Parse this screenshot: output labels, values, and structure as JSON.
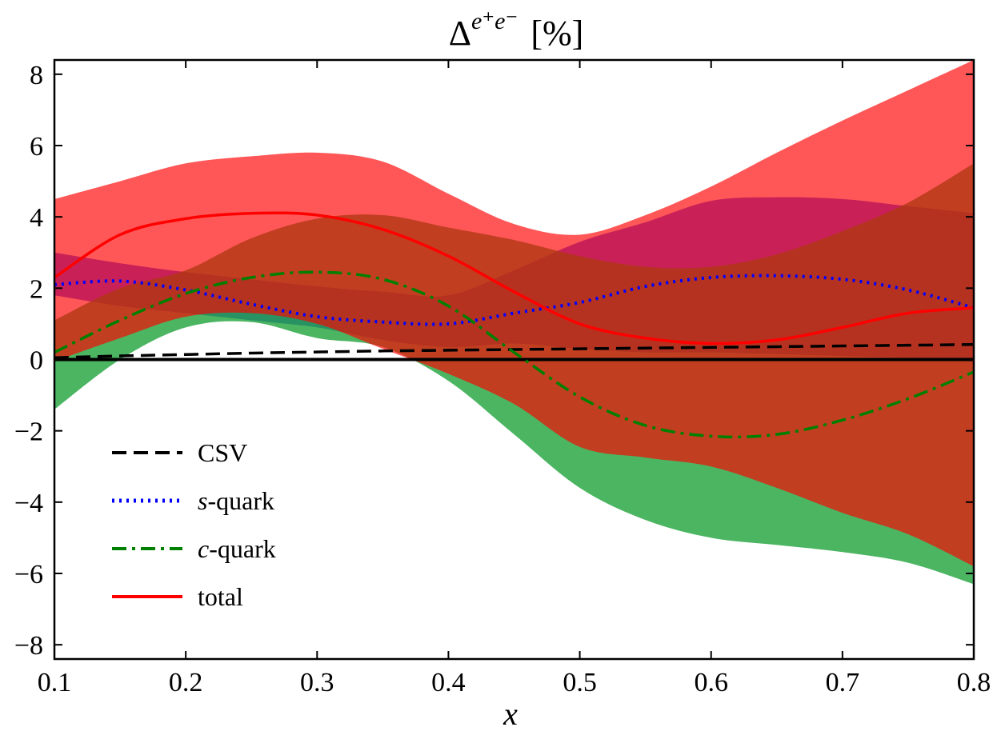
{
  "chart_data": {
    "type": "line",
    "title": "Δ^{e+e−} [%]",
    "title_parts": {
      "base": "Δ",
      "superscript": "e⁺e⁻",
      "unit": "[%]"
    },
    "xlabel": "x",
    "ylabel": "",
    "xlim": [
      0.1,
      0.8
    ],
    "ylim": [
      -8.4,
      8.4
    ],
    "x_ticks": [
      0.1,
      0.2,
      0.3,
      0.4,
      0.5,
      0.6,
      0.7,
      0.8
    ],
    "x_tick_labels": [
      "0.1",
      "0.2",
      "0.3",
      "0.4",
      "0.5",
      "0.6",
      "0.7",
      "0.8"
    ],
    "y_ticks": [
      -8,
      -6,
      -4,
      -2,
      0,
      2,
      4,
      6,
      8
    ],
    "y_tick_labels": [
      "−8",
      "−6",
      "−4",
      "−2",
      "0",
      "2",
      "4",
      "6",
      "8"
    ],
    "grid": false,
    "legend_position": "lower-left",
    "x": [
      0.1,
      0.15,
      0.2,
      0.25,
      0.3,
      0.35,
      0.4,
      0.45,
      0.5,
      0.55,
      0.6,
      0.65,
      0.7,
      0.75,
      0.8
    ],
    "series": [
      {
        "name": "CSV",
        "label_parts": {
          "italic": "",
          "rest": "CSV"
        },
        "color": "#000000",
        "dash": "dashed",
        "values": [
          0.05,
          0.1,
          0.14,
          0.18,
          0.21,
          0.24,
          0.26,
          0.28,
          0.3,
          0.32,
          0.34,
          0.36,
          0.38,
          0.4,
          0.42
        ],
        "band": null
      },
      {
        "name": "s-quark",
        "label_parts": {
          "italic": "s",
          "rest": "-quark"
        },
        "color": "#0000ff",
        "dash": "dotted",
        "values": [
          2.1,
          2.2,
          1.95,
          1.55,
          1.2,
          1.05,
          1.0,
          1.3,
          1.6,
          2.05,
          2.3,
          2.35,
          2.25,
          1.95,
          1.45
        ],
        "band": {
          "color": "#0000ff",
          "opacity": 0.62,
          "lower": [
            1.8,
            1.5,
            1.3,
            1.1,
            0.9,
            0.55,
            0.35,
            0.45,
            0.3,
            0.2,
            0.2,
            0.15,
            0.1,
            0.05,
            0.0
          ],
          "upper": [
            3.0,
            2.7,
            2.45,
            2.25,
            2.05,
            1.9,
            1.8,
            2.5,
            3.3,
            3.85,
            4.45,
            4.55,
            4.5,
            4.3,
            4.1
          ]
        }
      },
      {
        "name": "c-quark",
        "label_parts": {
          "italic": "c",
          "rest": "-quark"
        },
        "color": "#008000",
        "dash": "dashdot",
        "values": [
          0.2,
          1.1,
          1.85,
          2.3,
          2.45,
          2.25,
          1.5,
          0.2,
          -1.05,
          -1.85,
          -2.15,
          -2.1,
          -1.7,
          -1.1,
          -0.35
        ],
        "band": {
          "color": "#18a036",
          "opacity": 0.78,
          "lower": [
            -1.4,
            0.0,
            0.9,
            1.05,
            0.6,
            0.35,
            -0.6,
            -2.1,
            -3.6,
            -4.5,
            -5.0,
            -5.2,
            -5.4,
            -5.7,
            -6.3
          ],
          "upper": [
            1.1,
            2.0,
            2.5,
            3.4,
            3.95,
            4.05,
            3.7,
            3.35,
            2.9,
            2.6,
            2.6,
            2.95,
            3.6,
            4.4,
            5.5
          ]
        }
      },
      {
        "name": "total",
        "label_parts": {
          "italic": "",
          "rest": "total"
        },
        "color": "#ff0000",
        "dash": "solid",
        "values": [
          2.3,
          3.5,
          3.95,
          4.1,
          4.05,
          3.65,
          2.9,
          1.9,
          1.0,
          0.6,
          0.45,
          0.55,
          0.9,
          1.3,
          1.45
        ],
        "band": {
          "color": "#ff0000",
          "opacity": 0.66,
          "lower": [
            -0.05,
            0.6,
            1.2,
            1.3,
            1.0,
            0.3,
            -0.4,
            -1.25,
            -2.45,
            -2.75,
            -3.0,
            -3.6,
            -4.3,
            -4.9,
            -5.8
          ],
          "upper": [
            4.5,
            5.0,
            5.5,
            5.7,
            5.8,
            5.55,
            4.65,
            3.8,
            3.5,
            4.05,
            4.85,
            5.8,
            6.7,
            7.55,
            8.4
          ]
        }
      }
    ]
  }
}
